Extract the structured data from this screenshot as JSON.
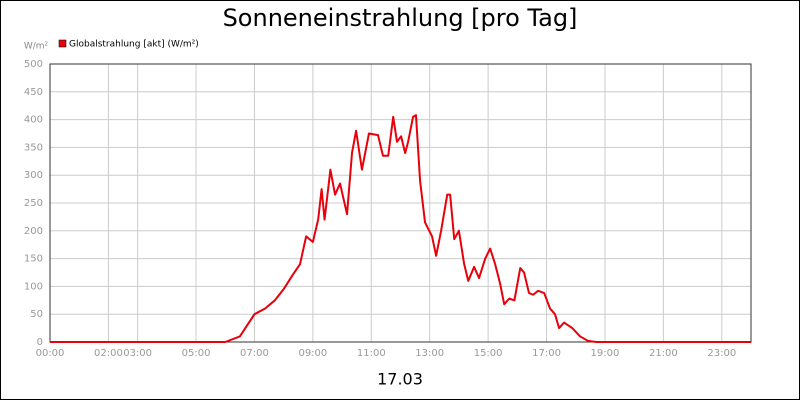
{
  "chart_data": {
    "type": "line",
    "title": "Sonneneinstrahlung [pro Tag]",
    "y_label": "W/m²",
    "x_label": "17.03",
    "legend": "top-left",
    "grid": true,
    "series": [
      {
        "name": "Globalstrahlung [akt] (W/m²)",
        "color": "#e8000b",
        "x": [
          0,
          6.0,
          6.5,
          7.0,
          7.36,
          7.7,
          8.0,
          8.3,
          8.56,
          8.77,
          9.0,
          9.18,
          9.3,
          9.4,
          9.6,
          9.76,
          9.93,
          10.17,
          10.34,
          10.48,
          10.68,
          10.92,
          11.23,
          11.4,
          11.58,
          11.75,
          11.88,
          12.02,
          12.16,
          12.26,
          12.43,
          12.53,
          12.67,
          12.84,
          13.08,
          13.22,
          13.39,
          13.6,
          13.7,
          13.84,
          14.0,
          14.18,
          14.32,
          14.52,
          14.69,
          14.9,
          15.07,
          15.24,
          15.41,
          15.55,
          15.72,
          15.9,
          16.1,
          16.23,
          16.4,
          16.54,
          16.71,
          16.92,
          17.12,
          17.29,
          17.43,
          17.6,
          17.88,
          18.15,
          18.42,
          18.7,
          24
        ],
        "values": [
          0,
          0,
          10,
          50,
          60,
          75,
          95,
          120,
          140,
          190,
          180,
          220,
          275,
          220,
          310,
          265,
          285,
          230,
          340,
          380,
          310,
          375,
          372,
          335,
          335,
          405,
          360,
          370,
          340,
          360,
          405,
          408,
          290,
          215,
          190,
          155,
          200,
          265,
          265,
          185,
          200,
          140,
          110,
          135,
          115,
          150,
          168,
          140,
          105,
          68,
          78,
          75,
          133,
          125,
          88,
          85,
          92,
          88,
          60,
          50,
          25,
          35,
          25,
          10,
          2,
          0,
          0
        ]
      }
    ],
    "xlim": [
      0,
      24
    ],
    "xticks": [
      {
        "value": 0,
        "label": "00:00"
      },
      {
        "value": 2,
        "label": "02:00"
      },
      {
        "value": 3,
        "label": "03:00"
      },
      {
        "value": 5,
        "label": "05:00"
      },
      {
        "value": 7,
        "label": "07:00"
      },
      {
        "value": 9,
        "label": "09:00"
      },
      {
        "value": 11,
        "label": "11:00"
      },
      {
        "value": 13,
        "label": "13:00"
      },
      {
        "value": 15,
        "label": "15:00"
      },
      {
        "value": 17,
        "label": "17:00"
      },
      {
        "value": 19,
        "label": "19:00"
      },
      {
        "value": 21,
        "label": "21:00"
      },
      {
        "value": 23,
        "label": "23:00"
      }
    ],
    "ylim": [
      0,
      500
    ],
    "yticks": [
      0,
      50,
      100,
      150,
      200,
      250,
      300,
      350,
      400,
      450,
      500
    ]
  }
}
